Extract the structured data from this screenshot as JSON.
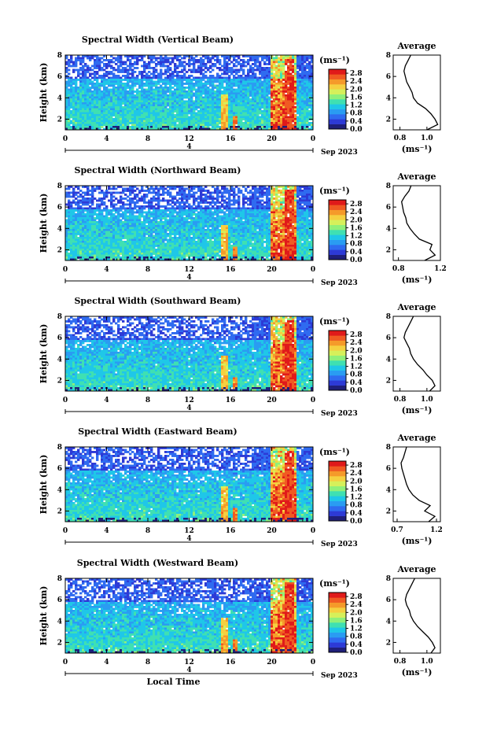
{
  "chart_data": [
    {
      "type": "heatmap",
      "title": "Spectral Width (Vertical Beam)",
      "ylabel": "Height (km)",
      "xlabel": "",
      "xlim": [
        0,
        24
      ],
      "ylim": [
        1,
        8
      ],
      "x_ticks": [
        "0",
        "4",
        "8",
        "12",
        "16",
        "20",
        "0"
      ],
      "x_ticks_raw": [
        "0",
        "4",
        "8",
        "12",
        "16",
        "20",
        "0"
      ],
      "y_ticks": [
        "2",
        "4",
        "6",
        "8"
      ],
      "date_label": "4",
      "date_text": "Sep 2023",
      "colorbar": {
        "unit": "(ms⁻¹)",
        "ticks": [
          "0.0",
          "0.4",
          "0.8",
          "1.2",
          "1.6",
          "2.0",
          "2.4",
          "2.8"
        ],
        "range": [
          0,
          3
        ]
      },
      "average": {
        "title": "Average",
        "xlabel": "(ms⁻¹)",
        "x_ticks": [
          "0.8",
          "1.0"
        ],
        "xlim": [
          0.75,
          1.1
        ],
        "height_km": [
          1.0,
          1.5,
          2.0,
          2.5,
          3.0,
          3.5,
          4.0,
          4.5,
          5.0,
          5.5,
          6.0,
          6.5,
          7.0,
          7.5,
          8.0
        ],
        "width_ms": [
          1.0,
          1.08,
          1.06,
          1.03,
          0.99,
          0.93,
          0.9,
          0.89,
          0.87,
          0.85,
          0.84,
          0.83,
          0.84,
          0.86,
          0.88
        ]
      }
    },
    {
      "type": "heatmap",
      "title": "Spectral Width (Northward Beam)",
      "ylabel": "Height (km)",
      "xlabel": "",
      "xlim": [
        0,
        24
      ],
      "ylim": [
        1,
        8
      ],
      "x_ticks": [
        "0",
        "4",
        "8",
        "12",
        "16",
        "20",
        "0"
      ],
      "y_ticks": [
        "2",
        "4",
        "6",
        "8"
      ],
      "date_label": "4",
      "date_text": "Sep 2023",
      "colorbar": {
        "unit": "(ms⁻¹)",
        "ticks": [
          "0.0",
          "0.4",
          "0.8",
          "1.2",
          "1.6",
          "2.0",
          "2.4",
          "2.8"
        ],
        "range": [
          0,
          3
        ]
      },
      "average": {
        "title": "Average",
        "xlabel": "(ms⁻¹)",
        "x_ticks": [
          "0.8",
          "1.2"
        ],
        "xlim": [
          0.75,
          1.2
        ],
        "height_km": [
          1.0,
          1.5,
          2.0,
          2.5,
          3.0,
          3.5,
          4.0,
          4.5,
          5.0,
          5.5,
          6.0,
          6.5,
          7.0,
          7.5,
          8.0
        ],
        "width_ms": [
          1.05,
          1.15,
          1.1,
          1.12,
          1.0,
          0.95,
          0.91,
          0.88,
          0.87,
          0.85,
          0.84,
          0.83,
          0.86,
          0.9,
          0.92
        ]
      }
    },
    {
      "type": "heatmap",
      "title": "Spectral Width (Southward Beam)",
      "ylabel": "Height (km)",
      "xlabel": "",
      "xlim": [
        0,
        24
      ],
      "ylim": [
        1,
        8
      ],
      "x_ticks": [
        "0",
        "4",
        "8",
        "12",
        "16",
        "20",
        "0"
      ],
      "y_ticks": [
        "2",
        "4",
        "6",
        "8"
      ],
      "date_label": "4",
      "date_text": "Sep 2023",
      "colorbar": {
        "unit": "(ms⁻¹)",
        "ticks": [
          "0.0",
          "0.4",
          "0.8",
          "1.2",
          "1.6",
          "2.0",
          "2.4",
          "2.8"
        ],
        "range": [
          0,
          3
        ]
      },
      "average": {
        "title": "Average",
        "xlabel": "(ms⁻¹)",
        "x_ticks": [
          "0.8",
          "1.0"
        ],
        "xlim": [
          0.75,
          1.1
        ],
        "height_km": [
          1.0,
          1.5,
          2.0,
          2.5,
          3.0,
          3.5,
          4.0,
          4.5,
          5.0,
          5.5,
          6.0,
          6.5,
          7.0,
          7.5,
          8.0
        ],
        "width_ms": [
          1.02,
          1.06,
          1.04,
          1.0,
          0.97,
          0.93,
          0.9,
          0.88,
          0.87,
          0.85,
          0.83,
          0.84,
          0.86,
          0.88,
          0.9
        ]
      }
    },
    {
      "type": "heatmap",
      "title": "Spectral Width (Eastward Beam)",
      "ylabel": "Height (km)",
      "xlabel": "",
      "xlim": [
        0,
        24
      ],
      "ylim": [
        1,
        8
      ],
      "x_ticks": [
        "0",
        "4",
        "8",
        "12",
        "16",
        "20",
        "0"
      ],
      "y_ticks": [
        "2",
        "4",
        "6",
        "8"
      ],
      "date_label": "4",
      "date_text": "Sep 2023",
      "colorbar": {
        "unit": "(ms⁻¹)",
        "ticks": [
          "0.0",
          "0.4",
          "0.8",
          "1.2",
          "1.6",
          "2.0",
          "2.4",
          "2.8"
        ],
        "range": [
          0,
          3
        ]
      },
      "average": {
        "title": "Average",
        "xlabel": "(ms⁻¹)",
        "x_ticks": [
          "0.7",
          "1.2"
        ],
        "xlim": [
          0.65,
          1.25
        ],
        "height_km": [
          1.0,
          1.5,
          2.0,
          2.5,
          3.0,
          3.5,
          4.0,
          4.5,
          5.0,
          5.5,
          6.0,
          6.5,
          7.0,
          7.5,
          8.0
        ],
        "width_ms": [
          1.1,
          1.18,
          1.05,
          1.12,
          0.98,
          0.9,
          0.85,
          0.82,
          0.8,
          0.78,
          0.76,
          0.75,
          0.78,
          0.8,
          0.82
        ]
      }
    },
    {
      "type": "heatmap",
      "title": "Spectral Width (Westward Beam)",
      "ylabel": "Height (km)",
      "xlabel": "Local Time",
      "xlim": [
        0,
        24
      ],
      "ylim": [
        1,
        8
      ],
      "x_ticks": [
        "0",
        "4",
        "8",
        "12",
        "16",
        "20",
        "0"
      ],
      "y_ticks": [
        "2",
        "4",
        "6",
        "8"
      ],
      "date_label": "4",
      "date_text": "Sep 2023",
      "colorbar": {
        "unit": "(ms⁻¹)",
        "ticks": [
          "0.0",
          "0.4",
          "0.8",
          "1.2",
          "1.6",
          "2.0",
          "2.4",
          "2.8"
        ],
        "range": [
          0,
          3
        ]
      },
      "average": {
        "title": "Average",
        "xlabel": "(ms⁻¹)",
        "x_ticks": [
          "0.8",
          "1.0"
        ],
        "xlim": [
          0.75,
          1.1
        ],
        "height_km": [
          1.0,
          1.5,
          2.0,
          2.5,
          3.0,
          3.5,
          4.0,
          4.5,
          5.0,
          5.5,
          6.0,
          6.5,
          7.0,
          7.5,
          8.0
        ],
        "width_ms": [
          1.03,
          1.06,
          1.04,
          1.01,
          0.97,
          0.93,
          0.9,
          0.88,
          0.87,
          0.85,
          0.84,
          0.85,
          0.87,
          0.89,
          0.91
        ]
      }
    }
  ],
  "colors": {
    "colormap": [
      "#1f1f7a",
      "#2d3ad6",
      "#2f6bf0",
      "#2a9cf2",
      "#1fc7e8",
      "#3fe0b2",
      "#8ff07a",
      "#d6f05a",
      "#f5d040",
      "#f59a2a",
      "#f05a22",
      "#e01a1a"
    ],
    "axis": "#000000"
  }
}
